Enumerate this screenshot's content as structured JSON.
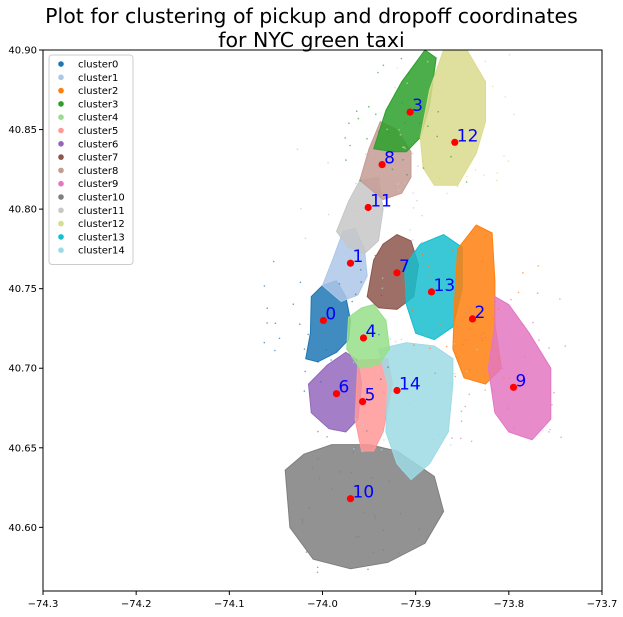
{
  "chart_data": {
    "type": "scatter",
    "title": "Plot for clustering of pickup and dropoff coordinates\nfor NYC green taxi",
    "xlabel": "",
    "ylabel": "",
    "xlim": [
      -74.3,
      -73.7
    ],
    "ylim": [
      40.56,
      40.9
    ],
    "x_ticks": [
      -74.3,
      -74.2,
      -74.1,
      -74.0,
      -73.9,
      -73.8,
      -73.7
    ],
    "x_tick_labels": [
      "−74.3",
      "−74.2",
      "−74.1",
      "−74.0",
      "−73.9",
      "−73.8",
      "−73.7"
    ],
    "y_ticks": [
      40.6,
      40.65,
      40.7,
      40.75,
      40.8,
      40.85,
      40.9
    ],
    "y_tick_labels": [
      "40.60",
      "40.65",
      "40.70",
      "40.75",
      "40.80",
      "40.85",
      "40.90"
    ],
    "grid": false,
    "legend_position": "top-left",
    "series": [
      {
        "name": "cluster0",
        "color": "#1f77b4"
      },
      {
        "name": "cluster1",
        "color": "#aec7e8"
      },
      {
        "name": "cluster2",
        "color": "#ff7f0e"
      },
      {
        "name": "cluster3",
        "color": "#2ca02c"
      },
      {
        "name": "cluster4",
        "color": "#98df8a"
      },
      {
        "name": "cluster5",
        "color": "#ff9896"
      },
      {
        "name": "cluster6",
        "color": "#9467bd"
      },
      {
        "name": "cluster7",
        "color": "#8c564b"
      },
      {
        "name": "cluster8",
        "color": "#c49c94"
      },
      {
        "name": "cluster9",
        "color": "#e377c2"
      },
      {
        "name": "cluster10",
        "color": "#7f7f7f"
      },
      {
        "name": "cluster11",
        "color": "#c7c7c7"
      },
      {
        "name": "cluster12",
        "color": "#dbdb8d"
      },
      {
        "name": "cluster13",
        "color": "#17becf"
      },
      {
        "name": "cluster14",
        "color": "#9edae5"
      }
    ],
    "centroids": [
      {
        "label": "0",
        "x": -73.999,
        "y": 40.73
      },
      {
        "label": "1",
        "x": -73.97,
        "y": 40.766
      },
      {
        "label": "2",
        "x": -73.839,
        "y": 40.731
      },
      {
        "label": "3",
        "x": -73.906,
        "y": 40.861
      },
      {
        "label": "4",
        "x": -73.956,
        "y": 40.719
      },
      {
        "label": "5",
        "x": -73.957,
        "y": 40.679
      },
      {
        "label": "6",
        "x": -73.985,
        "y": 40.684
      },
      {
        "label": "7",
        "x": -73.92,
        "y": 40.76
      },
      {
        "label": "8",
        "x": -73.936,
        "y": 40.828
      },
      {
        "label": "9",
        "x": -73.795,
        "y": 40.688
      },
      {
        "label": "10",
        "x": -73.97,
        "y": 40.618
      },
      {
        "label": "11",
        "x": -73.951,
        "y": 40.801
      },
      {
        "label": "12",
        "x": -73.858,
        "y": 40.842
      },
      {
        "label": "13",
        "x": -73.883,
        "y": 40.748
      },
      {
        "label": "14",
        "x": -73.92,
        "y": 40.686
      }
    ],
    "centroid_color": "#ff0000",
    "centroid_label_color": "#0000ff"
  }
}
